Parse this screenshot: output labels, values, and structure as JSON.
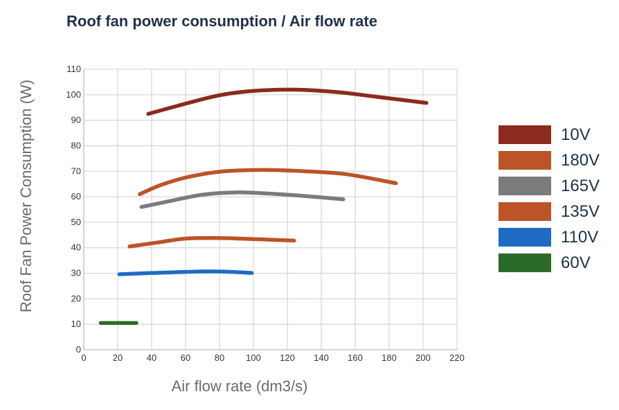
{
  "chart_data": {
    "type": "line",
    "title": "Roof fan power consumption / Air flow rate",
    "xlabel": "Air flow rate (dm3/s)",
    "ylabel": "Roof Fan Power Consumption (W)",
    "xlim": [
      0,
      220
    ],
    "ylim": [
      0,
      110
    ],
    "x_ticks": [
      "0",
      "20",
      "40",
      "60",
      "80",
      "100",
      "120",
      "140",
      "160",
      "180",
      "200",
      "220"
    ],
    "y_ticks": [
      "0",
      "10",
      "20",
      "30",
      "40",
      "50",
      "60",
      "70",
      "80",
      "90",
      "100",
      "110"
    ],
    "grid": true,
    "legend_position": "right",
    "series": [
      {
        "name": "10V",
        "color": "#8b2a1d",
        "points": [
          [
            38,
            92.5
          ],
          [
            60,
            96.5
          ],
          [
            80,
            99.8
          ],
          [
            100,
            101.5
          ],
          [
            125,
            102
          ],
          [
            150,
            101
          ],
          [
            175,
            99
          ],
          [
            202,
            96.8
          ]
        ]
      },
      {
        "name": "180V",
        "color": "#bb5427",
        "points": [
          [
            33,
            61
          ],
          [
            45,
            64.5
          ],
          [
            60,
            67.5
          ],
          [
            80,
            69.8
          ],
          [
            105,
            70.5
          ],
          [
            130,
            70
          ],
          [
            155,
            68.8
          ],
          [
            184,
            65.3
          ]
        ]
      },
      {
        "name": "165V",
        "color": "#7b7b7b",
        "points": [
          [
            34,
            56
          ],
          [
            50,
            58.2
          ],
          [
            70,
            60.8
          ],
          [
            90,
            61.7
          ],
          [
            110,
            61.2
          ],
          [
            130,
            60.3
          ],
          [
            153,
            59
          ]
        ]
      },
      {
        "name": "135V",
        "color": "#bb5427",
        "points": [
          [
            27,
            40.5
          ],
          [
            45,
            42.2
          ],
          [
            60,
            43.6
          ],
          [
            80,
            43.8
          ],
          [
            100,
            43.4
          ],
          [
            124,
            42.8
          ]
        ]
      },
      {
        "name": "110V",
        "color": "#1f6bc4",
        "points": [
          [
            21,
            29.6
          ],
          [
            40,
            30.1
          ],
          [
            70,
            30.7
          ],
          [
            85,
            30.6
          ],
          [
            99,
            30.1
          ]
        ]
      },
      {
        "name": "60V",
        "color": "#2b6a27",
        "points": [
          [
            10,
            10.5
          ],
          [
            31,
            10.5
          ]
        ]
      }
    ]
  }
}
